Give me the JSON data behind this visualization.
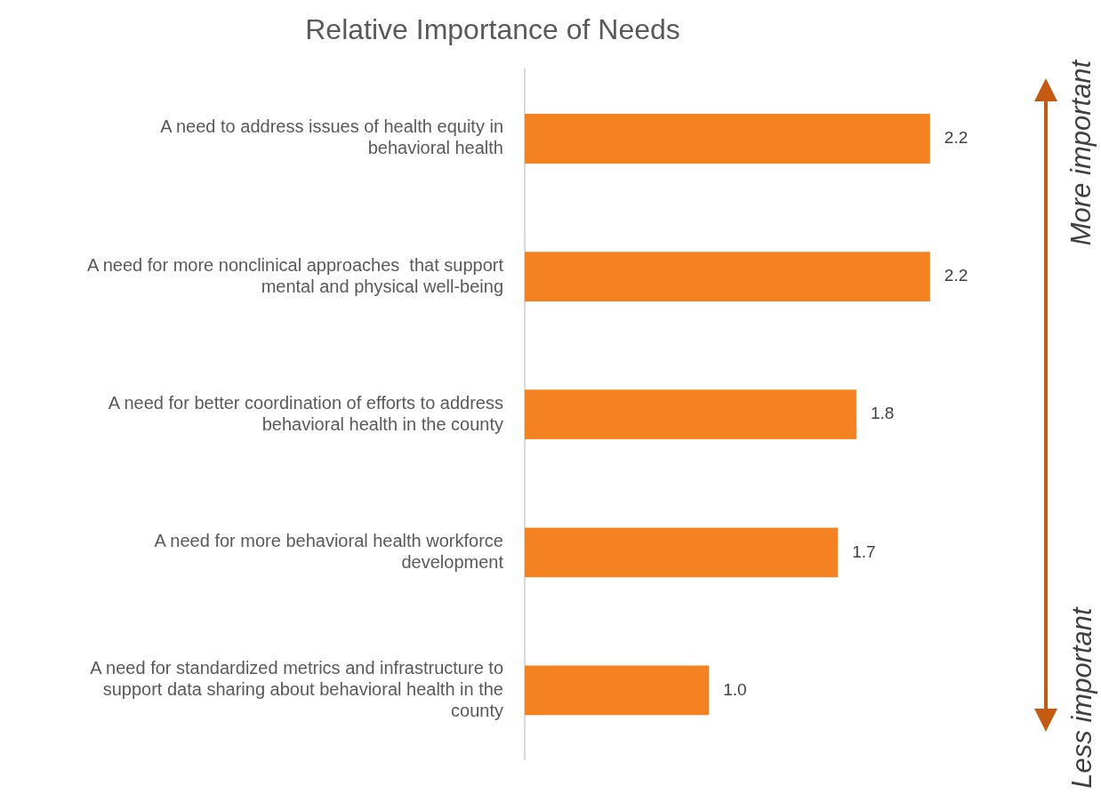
{
  "chart_data": {
    "type": "bar",
    "orientation": "horizontal",
    "title": "Relative Importance of Needs",
    "categories": [
      "A need to address issues of health equity in behavioral health",
      "A need for more nonclinical approaches  that support mental and physical well-being",
      "A need for better coordination of efforts to address behavioral health in the county",
      "A need for more behavioral health workforce development",
      "A need for standardized metrics and infrastructure to support data sharing about behavioral health in the county"
    ],
    "values": [
      2.2,
      2.2,
      1.8,
      1.7,
      1.0
    ],
    "color": "#f58220",
    "value_labels": [
      "2.2",
      "2.2",
      "1.8",
      "1.7",
      "1.0"
    ],
    "tick_labels": "y",
    "grid": false,
    "legend": false,
    "annotations": [
      "More important",
      "Less important"
    ]
  }
}
